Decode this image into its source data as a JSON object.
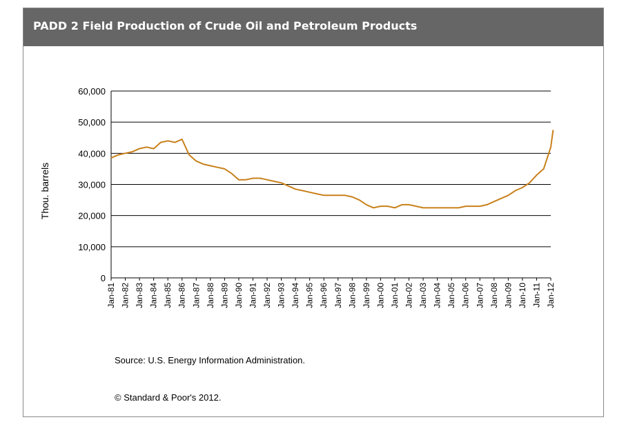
{
  "header": {
    "title": "PADD 2 Field Production of Crude Oil and Petroleum Products"
  },
  "footer": {
    "source": "Source: U.S. Energy Information Administration.",
    "copyright": "© Standard & Poor's 2012."
  },
  "colors": {
    "header_bg": "#666666",
    "series_line": "#c8801a",
    "gridline": "#000000"
  },
  "chart_data": {
    "type": "line",
    "title": "",
    "xlabel": "",
    "ylabel": "Thou. barrels",
    "ylim": [
      0,
      60000
    ],
    "grid": true,
    "legend": "none",
    "y_ticks": [
      0,
      10000,
      20000,
      30000,
      40000,
      50000,
      60000
    ],
    "y_tick_labels": [
      "0",
      "10,000",
      "20,000",
      "30,000",
      "40,000",
      "50,000",
      "60,000"
    ],
    "x_tick_labels": [
      "Jan-81",
      "Jan-82",
      "Jan-83",
      "Jan-84",
      "Jan-85",
      "Jan-86",
      "Jan-87",
      "Jan-88",
      "Jan-89",
      "Jan-90",
      "Jan-91",
      "Jan-92",
      "Jan-93",
      "Jan-94",
      "Jan-95",
      "Jan-96",
      "Jan-97",
      "Jan-98",
      "Jan-99",
      "Jan-00",
      "Jan-01",
      "Jan-02",
      "Jan-03",
      "Jan-04",
      "Jan-05",
      "Jan-06",
      "Jan-07",
      "Jan-08",
      "Jan-09",
      "Jan-10",
      "Jan-11",
      "Jan-12"
    ],
    "series": [
      {
        "name": "",
        "x": [
          "Jan-81",
          "Jul-81",
          "Jan-82",
          "Jul-82",
          "Jan-83",
          "Jul-83",
          "Jan-84",
          "Jul-84",
          "Jan-85",
          "Jul-85",
          "Jan-86",
          "Jul-86",
          "Jan-87",
          "Jul-87",
          "Jan-88",
          "Jul-88",
          "Jan-89",
          "Jul-89",
          "Jan-90",
          "Jul-90",
          "Jan-91",
          "Jul-91",
          "Jan-92",
          "Jul-92",
          "Jan-93",
          "Jul-93",
          "Jan-94",
          "Jul-94",
          "Jan-95",
          "Jul-95",
          "Jan-96",
          "Jul-96",
          "Jan-97",
          "Jul-97",
          "Jan-98",
          "Jul-98",
          "Jan-99",
          "Jul-99",
          "Jan-00",
          "Jul-00",
          "Jan-01",
          "Jul-01",
          "Jan-02",
          "Jul-02",
          "Jan-03",
          "Jul-03",
          "Jan-04",
          "Jul-04",
          "Jan-05",
          "Jul-05",
          "Jan-06",
          "Jul-06",
          "Jan-07",
          "Jul-07",
          "Jan-08",
          "Jul-08",
          "Jan-09",
          "Jul-09",
          "Jan-10",
          "Jul-10",
          "Jan-11",
          "Jul-11",
          "Jan-12",
          "Mar-12"
        ],
        "values": [
          38500,
          39500,
          40000,
          40500,
          41500,
          42000,
          41500,
          43500,
          44000,
          43500,
          44500,
          39500,
          37500,
          36500,
          36000,
          35500,
          35000,
          33500,
          31500,
          31500,
          32000,
          32000,
          31500,
          31000,
          30500,
          29500,
          28500,
          28000,
          27500,
          27000,
          26500,
          26500,
          26500,
          26500,
          26000,
          25000,
          23500,
          22500,
          23000,
          23000,
          22500,
          23500,
          23500,
          23000,
          22500,
          22500,
          22500,
          22500,
          22500,
          22500,
          23000,
          23000,
          23000,
          23500,
          24500,
          25500,
          26500,
          28000,
          29000,
          30500,
          33000,
          35000,
          42000,
          47500
        ]
      }
    ]
  }
}
